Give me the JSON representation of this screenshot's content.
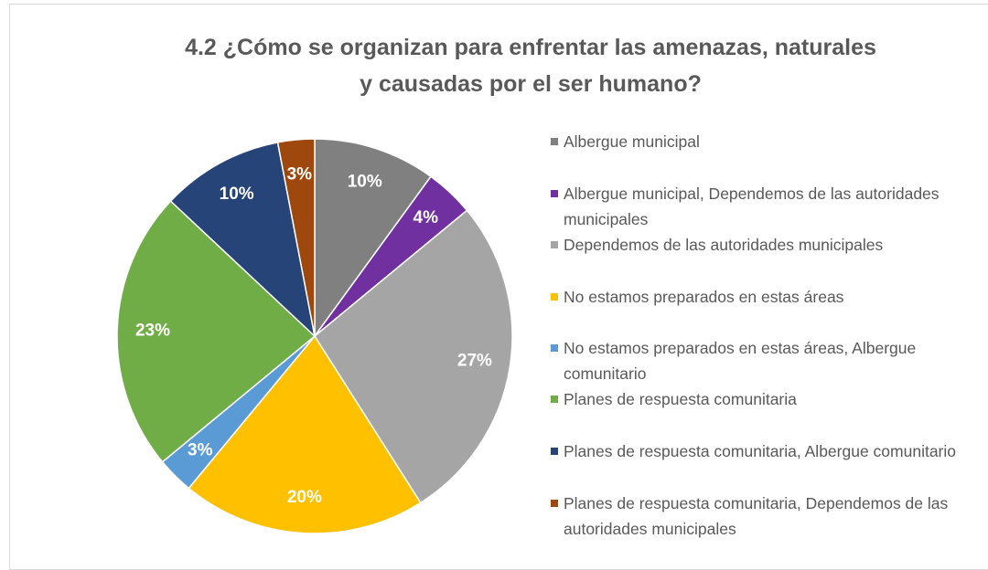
{
  "chart_data": {
    "type": "pie",
    "title": "4.2 ¿Cómo se organizan para enfrentar las amenazas, naturales y causadas por el ser humano?",
    "categories": [
      "Albergue municipal",
      "Albergue municipal, Dependemos de las autoridades municipales",
      "Dependemos de las autoridades municipales",
      "No estamos preparados en estas áreas",
      "No estamos preparados en estas áreas, Albergue comunitario",
      "Planes de respuesta comunitaria",
      "Planes de respuesta comunitaria, Albergue comunitario",
      "Planes de respuesta comunitaria, Dependemos de las autoridades municipales"
    ],
    "values": [
      10,
      4,
      27,
      20,
      3,
      23,
      10,
      3
    ],
    "value_labels": [
      "10%",
      "4%",
      "27%",
      "20%",
      "3%",
      "23%",
      "10%",
      "3%"
    ],
    "colors": [
      "#808080",
      "#7030a0",
      "#a5a5a5",
      "#ffc000",
      "#5b9bd5",
      "#70ad47",
      "#264478",
      "#9e480e"
    ],
    "legend": "right"
  }
}
